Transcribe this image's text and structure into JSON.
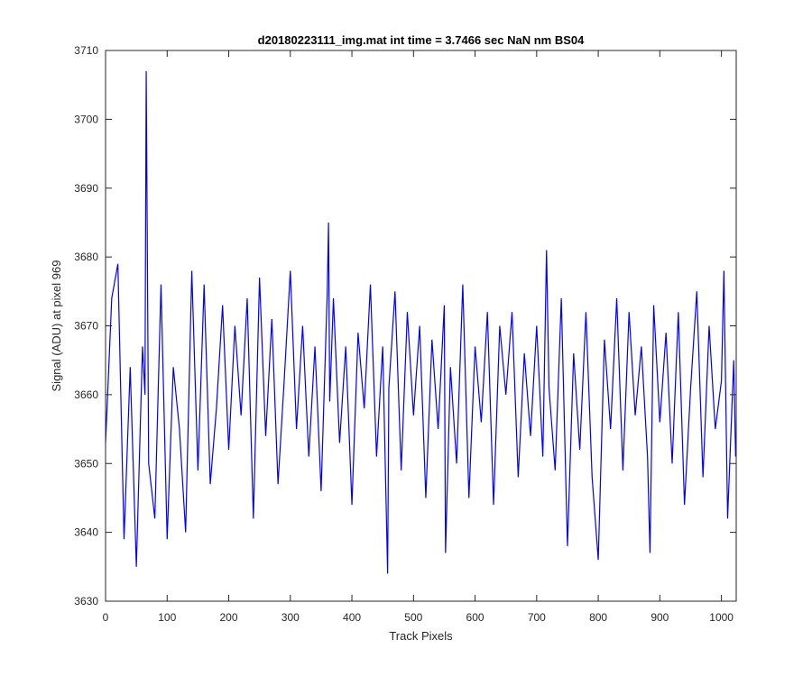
{
  "chart_data": {
    "type": "line",
    "title": "d20180223111_img.mat int time = 3.7466 sec  NaN nm BS04",
    "xlabel": "Track Pixels",
    "ylabel": "Signal (ADU) at pixel 969",
    "xlim": [
      0,
      1024
    ],
    "ylim": [
      3630,
      3710
    ],
    "xticks": [
      0,
      100,
      200,
      300,
      400,
      500,
      600,
      700,
      800,
      900,
      1000
    ],
    "yticks": [
      3630,
      3640,
      3650,
      3660,
      3670,
      3680,
      3690,
      3700,
      3710
    ],
    "grid": false,
    "box": true,
    "line_color": "#0000ff",
    "series": [
      {
        "x": [
          0,
          10,
          20,
          30,
          40,
          50,
          60,
          64,
          66,
          70,
          80,
          90,
          100,
          110,
          120,
          130,
          140,
          150,
          160,
          170,
          180,
          190,
          200,
          210,
          220,
          230,
          240,
          250,
          260,
          270,
          280,
          290,
          300,
          310,
          320,
          330,
          340,
          350,
          360,
          362,
          364,
          370,
          380,
          390,
          400,
          410,
          420,
          430,
          440,
          450,
          458,
          460,
          470,
          480,
          490,
          500,
          510,
          520,
          530,
          540,
          550,
          552,
          560,
          570,
          580,
          590,
          600,
          610,
          620,
          630,
          640,
          650,
          660,
          670,
          680,
          690,
          700,
          710,
          716,
          720,
          730,
          740,
          750,
          760,
          770,
          780,
          790,
          800,
          810,
          820,
          830,
          840,
          850,
          860,
          870,
          880,
          884,
          890,
          900,
          910,
          920,
          930,
          940,
          950,
          960,
          970,
          980,
          990,
          1000,
          1004,
          1010,
          1020,
          1023
        ],
        "y": [
          3653,
          3674,
          3679,
          3639,
          3664,
          3635,
          3667,
          3660,
          3707,
          3650,
          3642,
          3676,
          3639,
          3664,
          3655,
          3640,
          3678,
          3649,
          3676,
          3647,
          3658,
          3673,
          3652,
          3670,
          3657,
          3674,
          3642,
          3677,
          3654,
          3671,
          3647,
          3662,
          3678,
          3655,
          3670,
          3651,
          3667,
          3646,
          3675,
          3685,
          3659,
          3674,
          3653,
          3667,
          3644,
          3669,
          3658,
          3676,
          3651,
          3667,
          3634,
          3661,
          3675,
          3649,
          3672,
          3657,
          3670,
          3645,
          3668,
          3655,
          3673,
          3637,
          3664,
          3650,
          3676,
          3645,
          3667,
          3656,
          3672,
          3644,
          3670,
          3660,
          3672,
          3648,
          3666,
          3654,
          3670,
          3651,
          3681,
          3661,
          3649,
          3674,
          3638,
          3666,
          3652,
          3672,
          3648,
          3636,
          3668,
          3655,
          3674,
          3649,
          3672,
          3657,
          3667,
          3651,
          3637,
          3673,
          3656,
          3669,
          3650,
          3672,
          3644,
          3661,
          3675,
          3648,
          3670,
          3655,
          3662,
          3678,
          3642,
          3665,
          3651
        ]
      }
    ]
  }
}
